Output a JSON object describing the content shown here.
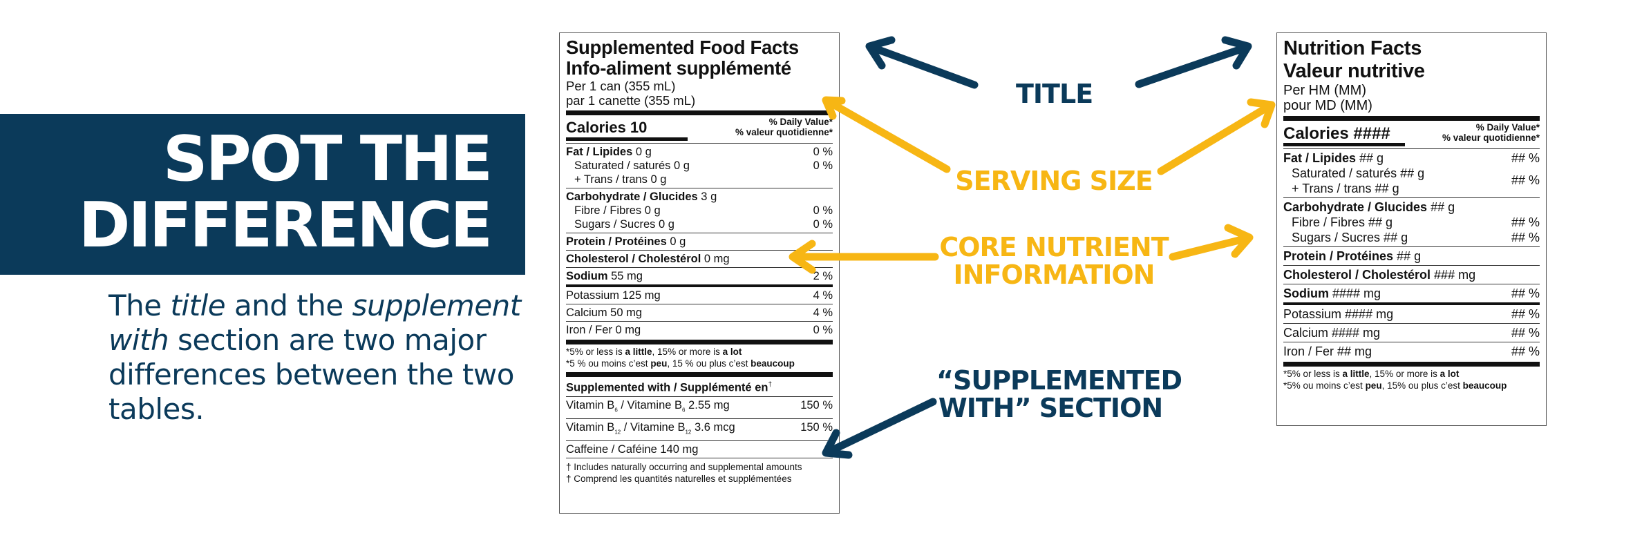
{
  "banner": {
    "title_line1": "SPOT THE",
    "title_line2": "DIFFERENCE",
    "desc_1": "The ",
    "desc_title": "title",
    "desc_2": " and the ",
    "desc_supplement": "supplement with",
    "desc_3": " section are two major differences between the two tables."
  },
  "callouts": {
    "title": "TITLE",
    "serving_size": "SERVING SIZE",
    "core_line1": "CORE NUTRIENT",
    "core_line2": "INFORMATION",
    "supp_line1": "“SUPPLEMENTED",
    "supp_line2": "WITH” SECTION"
  },
  "colors": {
    "navy": "#0b3a5a",
    "gold": "#f7b614"
  },
  "supplemented_panel": {
    "title_en": "Supplemented Food Facts",
    "title_fr": "Info-aliment supplémenté",
    "serving_en": "Per 1 can (355 mL)",
    "serving_fr": "par 1 canette (355 mL)",
    "calories_label": "Calories 10",
    "dv_en": "% Daily Value*",
    "dv_fr": "% valeur quotidienne*",
    "fat_label": "Fat / Lipides",
    "fat_amount": " 0 g",
    "fat_dv": "0 %",
    "sat": "Saturated / saturés 0 g",
    "trans": "+ Trans / trans 0 g",
    "sat_trans_dv": "0 %",
    "carb_label": "Carbohydrate / Glucides",
    "carb_amount": " 3 g",
    "fibre": "Fibre / Fibres 0 g",
    "fibre_dv": "0 %",
    "sugars": "Sugars / Sucres 0 g",
    "sugars_dv": "0 %",
    "protein_label": "Protein / Protéines",
    "protein_amount": " 0 g",
    "chol_label": "Cholesterol / Cholestérol",
    "chol_amount": " 0 mg",
    "sodium_label": "Sodium",
    "sodium_amount": " 55 mg",
    "sodium_dv": "2 %",
    "potassium": "Potassium 125 mg",
    "potassium_dv": "4 %",
    "calcium": "Calcium 50 mg",
    "calcium_dv": "4 %",
    "iron": "Iron / Fer 0 mg",
    "iron_dv": "0 %",
    "fn_en_1": "*5% or less is ",
    "fn_en_b1": "a little",
    "fn_en_2": ", 15% or more is ",
    "fn_en_b2": "a lot",
    "fn_fr_1": "*5 % ou moins c’est ",
    "fn_fr_b1": "peu",
    "fn_fr_2": ", 15 % ou plus c’est ",
    "fn_fr_b2": "beaucoup",
    "supp_header": "Supplemented with / Supplémenté en",
    "supp_header_mark": "†",
    "b6_a": "Vitamin B",
    "b6_sub": "6",
    "b6_b": " / Vitamine B",
    "b6_c": " 2.55 mg",
    "b6_dv": "150 %",
    "b12_a": "Vitamin B",
    "b12_sub": "12",
    "b12_b": " / Vitamine B",
    "b12_c": " 3.6 mcg",
    "b12_dv": "150 %",
    "caffeine": "Caffeine / Caféine 140 mg",
    "note_en": "† Includes naturally occurring and supplemental amounts",
    "note_fr": "† Comprend les quantités naturelles et supplémentées"
  },
  "nutrition_panel": {
    "title_en": "Nutrition Facts",
    "title_fr": "Valeur nutritive",
    "serving_en": "Per HM (MM)",
    "serving_fr": "pour MD (MM)",
    "calories_label": "Calories ####",
    "dv_en": "% Daily Value*",
    "dv_fr": "% valeur quotidienne*",
    "fat_label": "Fat / Lipides",
    "fat_amount": " ## g",
    "fat_dv": "## %",
    "sat": "Saturated / saturés ## g",
    "trans": "+ Trans / trans ## g",
    "sat_trans_dv": "## %",
    "carb_label": "Carbohydrate / Glucides",
    "carb_amount": " ## g",
    "fibre": "Fibre / Fibres ## g",
    "fibre_dv": "## %",
    "sugars": "Sugars / Sucres ## g",
    "sugars_dv": "## %",
    "protein_label": "Protein / Protéines",
    "protein_amount": " ## g",
    "chol_label": "Cholesterol / Cholestérol",
    "chol_amount": " ### mg",
    "sodium_label": "Sodium",
    "sodium_amount": " #### mg",
    "sodium_dv": "## %",
    "potassium": "Potassium #### mg",
    "potassium_dv": "## %",
    "calcium": "Calcium #### mg",
    "calcium_dv": "## %",
    "iron": "Iron / Fer ## mg",
    "iron_dv": "## %",
    "fn_en_1": "*5% or less is ",
    "fn_en_b1": "a little",
    "fn_en_2": ", 15% or more is ",
    "fn_en_b2": "a lot",
    "fn_fr_1": "*5% ou moins c’est ",
    "fn_fr_b1": "peu",
    "fn_fr_2": ", 15% ou plus c’est ",
    "fn_fr_b2": "beaucoup"
  }
}
